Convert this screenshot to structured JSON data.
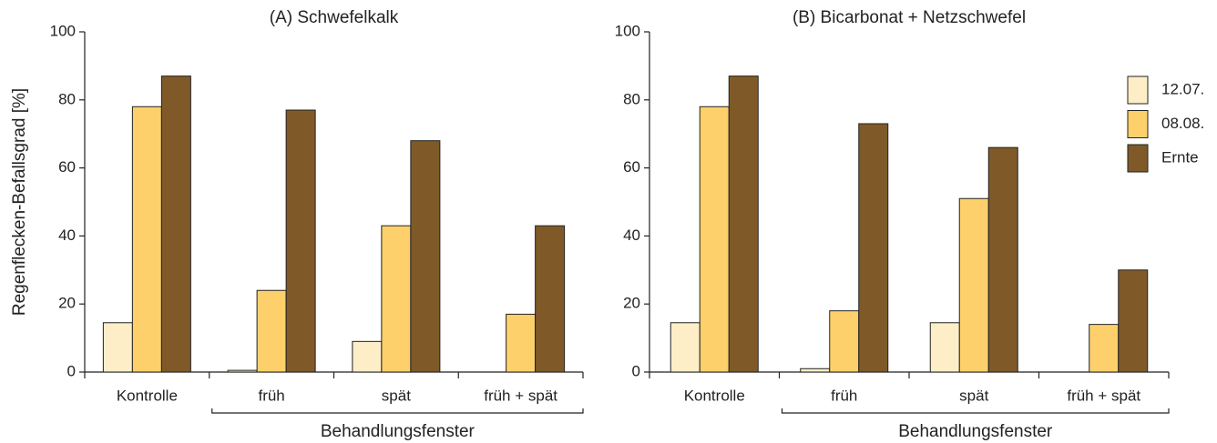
{
  "chart_data": [
    {
      "type": "bar",
      "title": "(A) Schwefelkalk",
      "ylabel": "Regenflecken-Befallsgrad [%]",
      "xlabel": "Behandlungsfenster",
      "categories": [
        "Kontrolle",
        "früh",
        "spät",
        "früh + spät"
      ],
      "series": [
        {
          "color": "#fdeec8",
          "values": [
            14.5,
            0.5,
            9,
            null
          ]
        },
        {
          "color": "#fdd06b",
          "values": [
            78,
            24,
            43,
            17
          ]
        },
        {
          "color": "#7f5a28",
          "values": [
            87,
            77,
            68,
            43
          ]
        }
      ],
      "ylim": [
        0,
        100
      ],
      "yticks": [
        0,
        20,
        40,
        60,
        80,
        100
      ],
      "legend": false
    },
    {
      "type": "bar",
      "title": "(B) Bicarbonat + Netzschwefel",
      "xlabel": "Behandlungsfenster",
      "categories": [
        "Kontrolle",
        "früh",
        "spät",
        "früh + spät"
      ],
      "series": [
        {
          "name": "12.07.",
          "color": "#fdeec8",
          "values": [
            14.5,
            1,
            14.5,
            null
          ]
        },
        {
          "name": "08.08.",
          "color": "#fdd06b",
          "values": [
            78,
            18,
            51,
            14
          ]
        },
        {
          "name": "Ernte",
          "color": "#7f5a28",
          "values": [
            87,
            73,
            66,
            30
          ]
        }
      ],
      "ylim": [
        0,
        100
      ],
      "yticks": [
        0,
        20,
        40,
        60,
        80,
        100
      ],
      "legend": "right"
    }
  ]
}
